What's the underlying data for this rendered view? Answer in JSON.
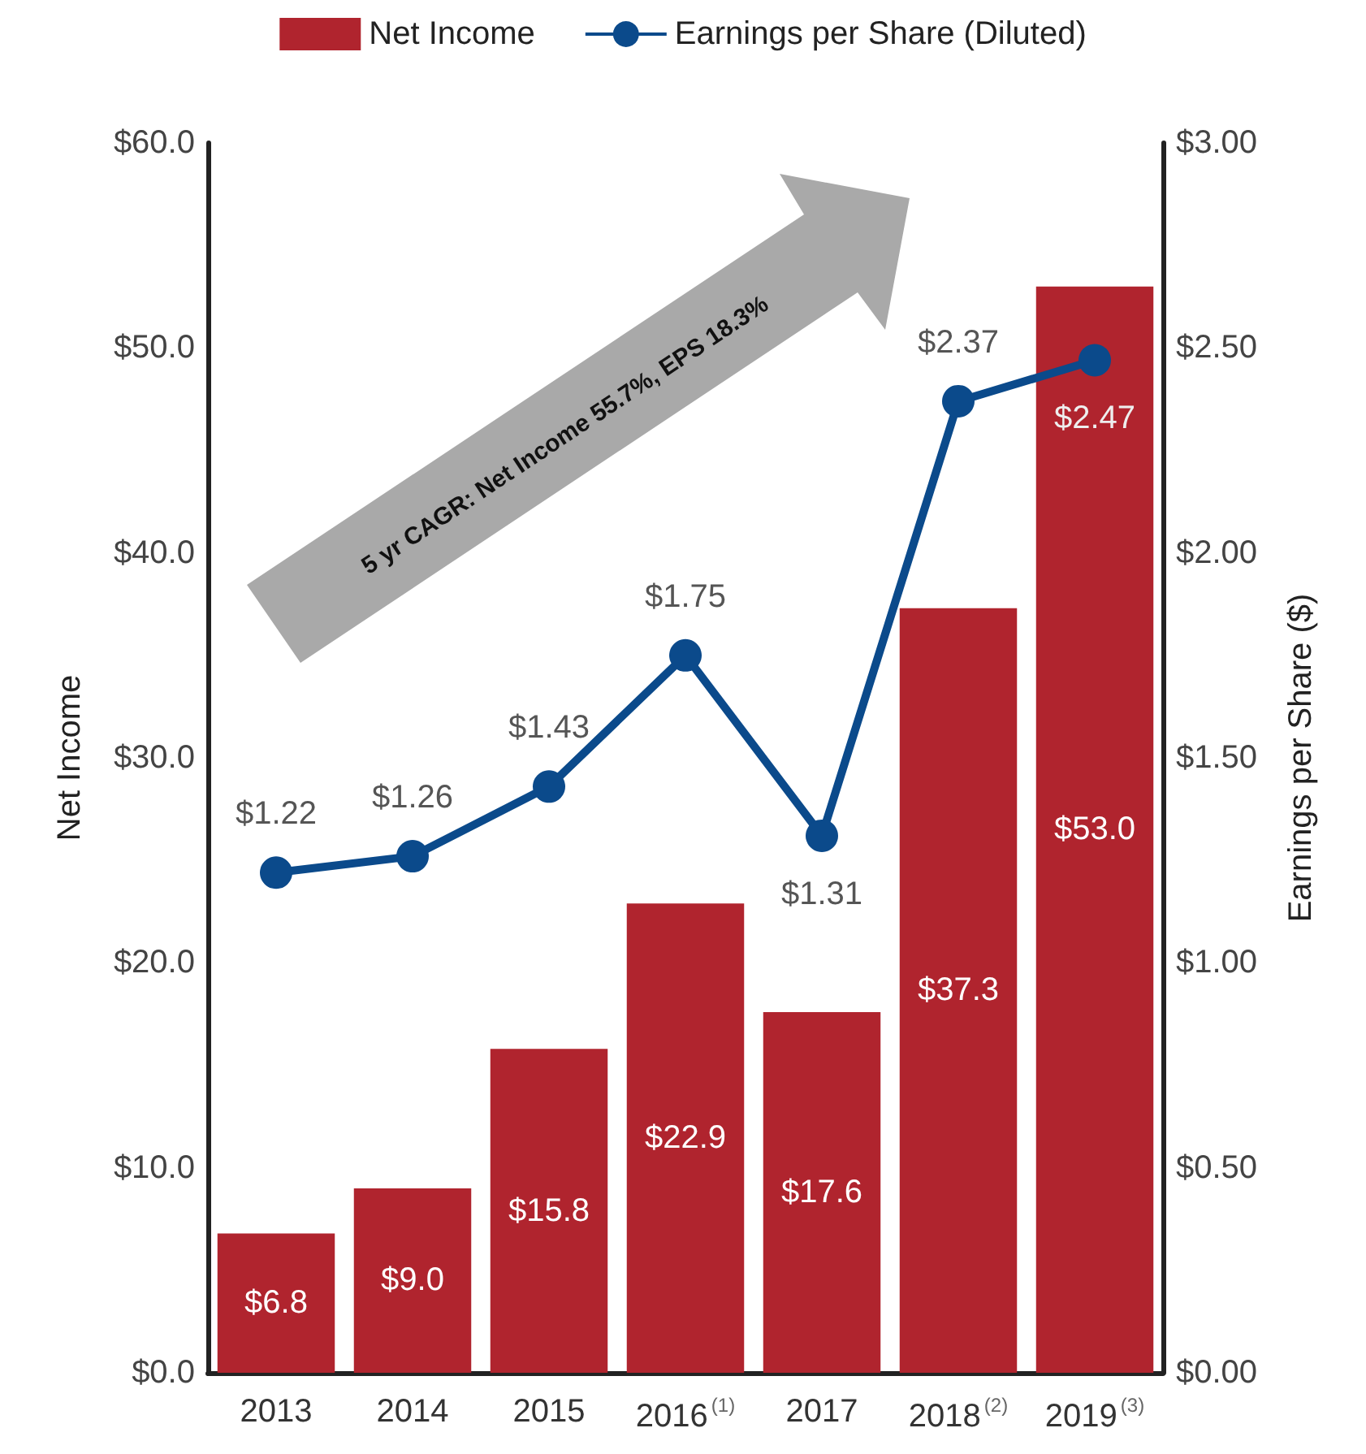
{
  "chart_data": {
    "type": "bar",
    "categories": [
      "2013",
      "2014",
      "2015",
      "2016$^{(1)}$",
      "2017",
      "2018$^{(2)}$",
      "2019$^{(3)}$"
    ],
    "series": [
      {
        "name": "Net Income",
        "color": "#b0242e",
        "values": [
          6.8,
          9.0,
          15.8,
          22.9,
          17.6,
          37.3,
          53.0
        ],
        "value_labels": [
          "$6.8",
          "$9.0",
          "$15.8",
          "$22.9",
          "$17.6",
          "$37.3",
          "$53.0"
        ]
      },
      {
        "name": "Earnings per Share (Diluted)",
        "type": "line",
        "axis": "y2",
        "color": "#0b4a8b",
        "marker": "circle",
        "values": [
          1.22,
          1.26,
          1.43,
          1.75,
          1.31,
          2.37,
          2.47
        ],
        "value_labels": [
          "$1.22",
          "$1.26",
          "$1.43",
          "$1.75",
          "$1.31",
          "$2.37",
          "$2.47"
        ]
      }
    ],
    "ylabel": "Net Income",
    "y2label": "Earnings per Share ($)",
    "ylim": [
      0,
      60
    ],
    "yticks": [
      {
        "value": 0,
        "label": "$0.0"
      },
      {
        "value": 10,
        "label": "$10.0"
      },
      {
        "value": 20,
        "label": "$20.0"
      },
      {
        "value": 30,
        "label": "$30.0"
      },
      {
        "value": 40,
        "label": "$40.0"
      },
      {
        "value": 50,
        "label": "$50.0"
      },
      {
        "value": 60,
        "label": "$60.0"
      }
    ],
    "y2lim": [
      0,
      3
    ],
    "y2ticks": [
      {
        "value": 0,
        "label": "$0.00"
      },
      {
        "value": 0.5,
        "label": "$0.50"
      },
      {
        "value": 1,
        "label": "$1.00"
      },
      {
        "value": 1.5,
        "label": "$1.50"
      },
      {
        "value": 2,
        "label": "$2.00"
      },
      {
        "value": 2.5,
        "label": "$2.50"
      },
      {
        "value": 3,
        "label": "$3.00"
      }
    ],
    "annotations": [
      "5 yr CAGR: Net Income 55.7%, EPS 18.3%"
    ],
    "legend": "top",
    "grid": false
  }
}
